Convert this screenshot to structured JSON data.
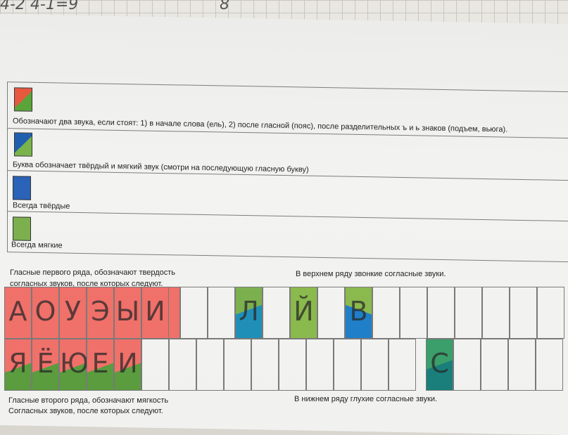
{
  "notebook_scribbles": [
    "4-2 4-1=9",
    "8"
  ],
  "legend": [
    {
      "swatch": "red-green-diagonal",
      "text": "Обозначают два звука, если стоят: 1) в начале слова (ель), 2) после гласной (пояс), после разделительных ъ и ь знаков (подъем, вьюга)."
    },
    {
      "swatch": "blue-green-diagonal",
      "text": "Буква обозначает твёрдый и мягкий звук (смотри на последующую гласную букву)"
    },
    {
      "swatch": "blue",
      "text": "Всегда твёрдые"
    },
    {
      "swatch": "green",
      "text": "Всегда мягкие"
    }
  ],
  "captions": {
    "vowels_first_row": [
      "Гласные первого ряда, обозначают твердость",
      "согласных звуков, после которых следуют."
    ],
    "voiced_top_row": "В верхнем ряду звонкие согласные звуки.",
    "vowels_second_row": [
      "Гласные второго ряда, обозначают мягкость",
      "Согласных звуков, после которых следуют."
    ],
    "voiceless_bottom_row": "В нижнем ряду глухие согласные звуки."
  },
  "grid": {
    "top_row_vowels": [
      "А",
      "О",
      "У",
      "Э",
      "Ы",
      "И"
    ],
    "bottom_row_vowels": [
      "Я",
      "Ё",
      "Ю",
      "Е",
      "И"
    ],
    "top_row_consonants": [
      "Л",
      "Й",
      "В"
    ],
    "bottom_row_consonants": [
      "С"
    ]
  },
  "colors": {
    "red": "#f0706a",
    "green": "#7cb04f",
    "blue": "#2a63b8"
  }
}
